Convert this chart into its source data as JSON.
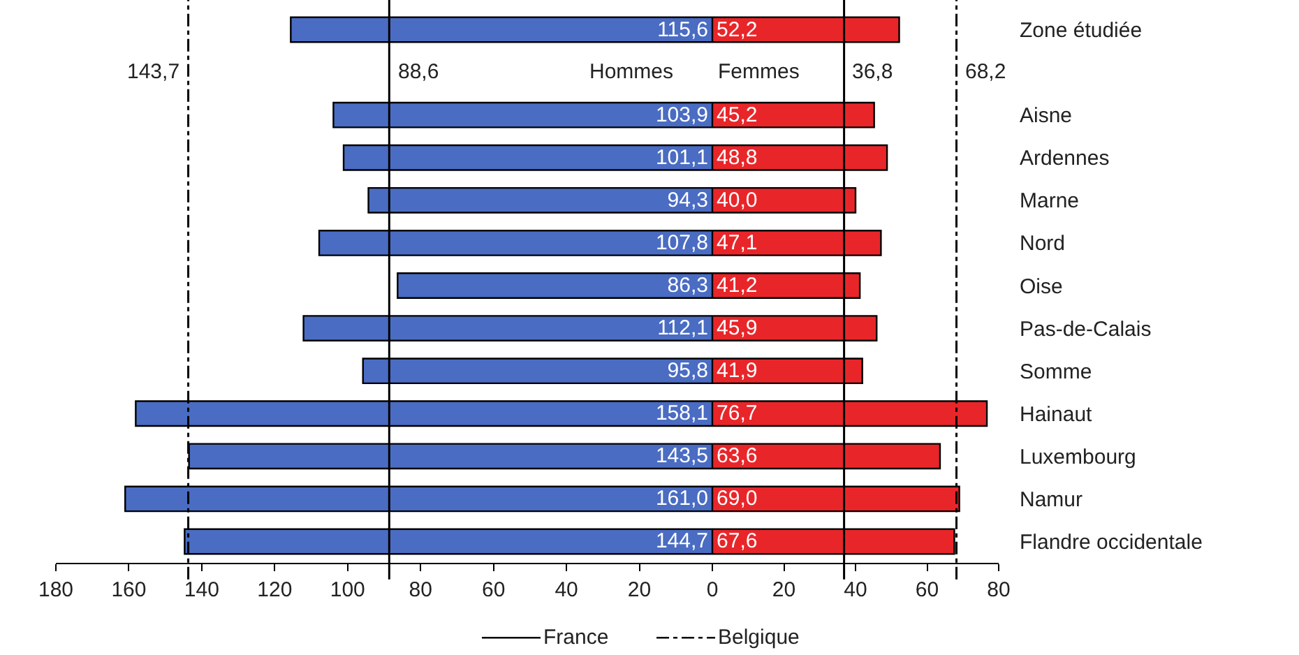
{
  "chart_data": [
    {
      "type": "bar",
      "orientation": "horizontal",
      "tick_labels": "x",
      "categories": [
        null,
        null,
        null,
        null,
        null,
        null,
        null,
        null,
        null,
        null,
        null,
        null,
        null
      ],
      "series": [
        {
          "name": "Hommes",
          "color": "#4a6cc2",
          "values": [
            115.6,
            null,
            103.9,
            101.1,
            94.3,
            107.8,
            86.3,
            112.1,
            95.8,
            158.1,
            143.5,
            161.0,
            144.7
          ],
          "value_labels": [
            "115,6",
            null,
            "103,9",
            "101,1",
            "94,3",
            "107,8",
            "86,3",
            "112,1",
            "95,8",
            "158,1",
            "143,5",
            "161,0",
            "144,7"
          ]
        }
      ],
      "xlim": [
        180,
        0
      ],
      "xticks": [
        180,
        160,
        140,
        120,
        100,
        80,
        60,
        40,
        20,
        0
      ],
      "ref_lines": [
        {
          "axis": "x",
          "value": 88.6,
          "label": "88,6",
          "line_style": "solid",
          "color": "#000000"
        },
        {
          "axis": "x",
          "value": 143.7,
          "label": "143,7",
          "line_style": "dashdot",
          "color": "#000000"
        }
      ],
      "annotations": [
        "France",
        "Belgique"
      ],
      "grid": false
    },
    {
      "type": "bar",
      "orientation": "horizontal",
      "categories": [
        "Zone étudiée",
        null,
        "Aisne",
        "Ardennes",
        "Marne",
        "Nord",
        "Oise",
        "Pas-de-Calais",
        "Somme",
        "Hainaut",
        "Luxembourg",
        "Namur",
        "Flandre occidentale"
      ],
      "series": [
        {
          "name": "Femmes",
          "color": "#e8262a",
          "values": [
            52.2,
            null,
            45.2,
            48.8,
            40.0,
            47.1,
            41.2,
            45.9,
            41.9,
            76.7,
            63.6,
            69.0,
            67.6
          ],
          "value_labels": [
            "52,2",
            null,
            "45,2",
            "48,8",
            "40,0",
            "47,1",
            "41,2",
            "45,9",
            "41,9",
            "76,7",
            "63,6",
            "69,0",
            "67,6"
          ]
        }
      ],
      "xlim": [
        0,
        80
      ],
      "xticks": [
        {
          "value": 0,
          "label": null
        },
        20,
        40,
        60,
        80
      ],
      "ref_lines": [
        {
          "axis": "x",
          "value": 36.8,
          "label": "36,8",
          "line_style": "solid",
          "color": "#000000"
        },
        {
          "axis": "x",
          "value": 68.2,
          "label": "68,2",
          "line_style": "dashdot",
          "color": "#000000"
        }
      ],
      "grid": false
    }
  ]
}
